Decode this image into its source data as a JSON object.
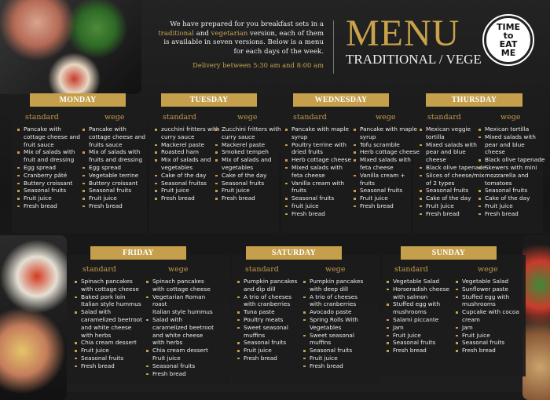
{
  "intro": {
    "line1": "We have prepared for you breakfast sets in a",
    "trad": "traditional",
    "and": " and ",
    "veg": "vegetarian",
    "line2rest": " version, each of them is available in seven versions. Below is a menu for each days of the week.",
    "delivery": "Delivery between 5:30 am and 8:00 am"
  },
  "header": {
    "title": "MENU",
    "subtitle": "TRADITIONAL / VEGE",
    "logo_text": "TIME TO EAT ME"
  },
  "colors": {
    "gold": "#c59f4c",
    "background": "#1a1a1a",
    "panel": "#1c1c1c"
  },
  "labels": {
    "standard": "standard",
    "wege": "wege"
  },
  "days": [
    {
      "name": "MONDAY",
      "standard": [
        {
          "t": "Pancake with cottage cheese and fruit sauce"
        },
        {
          "t": "Mix of salads with fruit and dressing"
        },
        {
          "t": "Egg spread"
        },
        {
          "t": "Cranberry pâté"
        },
        {
          "t": "Buttery croissant"
        },
        {
          "t": "Seasonal fruits"
        },
        {
          "t": "Fruit juice"
        },
        {
          "t": "Fresh bread"
        }
      ],
      "wege": [
        {
          "t": "Pancake with cottage cheese and fruits sauce"
        },
        {
          "t": "Mix of salads with fruits and dressing"
        },
        {
          "t": "Egg spread"
        },
        {
          "t": "Vegetable terrine"
        },
        {
          "t": "Buttery croissant"
        },
        {
          "t": "Seasonal fruits"
        },
        {
          "t": "Fruit juice"
        },
        {
          "t": "Fresh bread"
        }
      ]
    },
    {
      "name": "TUESDAY",
      "standard": [
        {
          "t": "zucchini fritters with curry sauce"
        },
        {
          "t": "Mackerel paste"
        },
        {
          "t": "Roasted ham"
        },
        {
          "t": "Mix of salads and vegetables"
        },
        {
          "t": "Cake of the day"
        },
        {
          "t": "Seasonal fruitss"
        },
        {
          "t": "Fruit juice"
        },
        {
          "t": "Fresh bread"
        }
      ],
      "wege": [
        {
          "t": "Zucchini fritters with curry sauce"
        },
        {
          "t": "Mackerel paste"
        },
        {
          "t": "Smoked tempeh"
        },
        {
          "t": "Mix of salads and vegetables"
        },
        {
          "t": "Cake of the day"
        },
        {
          "t": "Seasonal fruits"
        },
        {
          "t": "Fruit juice"
        },
        {
          "t": "Fresh bread"
        }
      ]
    },
    {
      "name": "WEDNESDAY",
      "standard": [
        {
          "t": "Pancake with maple syrup"
        },
        {
          "t": "Poultry terrine with dried fruits"
        },
        {
          "t": "Herb cottage cheese"
        },
        {
          "t": "Mixed salads with feta cheese"
        },
        {
          "t": "Vanilla cream with fruits"
        },
        {
          "t": "Seasonal fruits"
        },
        {
          "t": "fruit juice"
        },
        {
          "t": "Fresh bread"
        }
      ],
      "wege": [
        {
          "t": "Pancake with maple syrup"
        },
        {
          "t": "Tofu scramble"
        },
        {
          "t": "Herb cottage cheese"
        },
        {
          "t": "Mixed salads with feta cheese"
        },
        {
          "t": "Vanilla cream + fruits"
        },
        {
          "t": "Seasonal fruits"
        },
        {
          "t": "Fruit juice"
        },
        {
          "t": "Fresh bread"
        }
      ]
    },
    {
      "name": "THURSDAY",
      "standard": [
        {
          "t": "Mexican veggie tortilla"
        },
        {
          "t": "Mixed salads with pear and blue cheese"
        },
        {
          "t": "Black olive tapenade"
        },
        {
          "t": "Slices of cheese/mix of 2 types"
        },
        {
          "t": "Seasonal fruits"
        },
        {
          "t": "Cake of the day"
        },
        {
          "t": "Fruit juice"
        },
        {
          "t": "Fresh bread"
        }
      ],
      "wege": [
        {
          "t": "Mexican tortilla"
        },
        {
          "t": "Mixed salads with pear and blue cheese"
        },
        {
          "t": "Black olive tapenade"
        },
        {
          "t": "Skewers with mini mozzarella and tomatoes"
        },
        {
          "t": "Seasonal fruits"
        },
        {
          "t": "Cake of the day"
        },
        {
          "t": "Fruit juice"
        },
        {
          "t": "Fresh bread"
        }
      ]
    },
    {
      "name": "FRIDAY",
      "standard": [
        {
          "t": "Spinach pancakes with cottage cheese"
        },
        {
          "t": "Baked pork loin"
        },
        {
          "t": "Italian style hummus",
          "bullet": false
        },
        {
          "t": "Salad with caramelized beetroot and white cheese with herbs"
        },
        {
          "t": "Chia cream dessert"
        },
        {
          "t": "Fruit juice"
        },
        {
          "t": "Seasonal fruits"
        },
        {
          "t": "Fresh bread"
        }
      ],
      "wege": [
        {
          "t": "Spinach pancakes with cottage cheese"
        },
        {
          "t": "Vegetarian Roman roast"
        },
        {
          "t": "Italian style hummus",
          "bullet": false
        },
        {
          "t": "Salad with caramelized beetroot and white cheese with herbs"
        },
        {
          "t": "Chia cream dessert"
        },
        {
          "t": "Fruit juice",
          "bullet": false
        },
        {
          "t": "Seasonal fruits"
        },
        {
          "t": "Fresh bread"
        }
      ]
    },
    {
      "name": "SATURDAY",
      "standard": [
        {
          "t": "Pumpkin pancakes and dip dill"
        },
        {
          "t": "A trio of cheeses with cranberries"
        },
        {
          "t": "Tuna paste"
        },
        {
          "t": "Poultry meats"
        },
        {
          "t": "Sweet seasonal muffins"
        },
        {
          "t": "Seasonal fruits"
        },
        {
          "t": "Fruit juice"
        },
        {
          "t": "Fresh bread"
        }
      ],
      "wege": [
        {
          "t": "Pumpkin pancakes with deep dill"
        },
        {
          "t": "A trio of cheeses with cranberries"
        },
        {
          "t": "Avocado paste"
        },
        {
          "t": "Spring Rolls With Vegetables"
        },
        {
          "t": "Sweet seasonal muffins"
        },
        {
          "t": "Seasonal fruits"
        },
        {
          "t": "Fruit juice"
        },
        {
          "t": "Fresh bread"
        }
      ]
    },
    {
      "name": "SUNDAY",
      "standard": [
        {
          "t": "Vegetable Salad"
        },
        {
          "t": "Horseradish cheese with salmon"
        },
        {
          "t": "Stuffed egg with mushrooms"
        },
        {
          "t": "Salami piccante"
        },
        {
          "t": "Jam"
        },
        {
          "t": "Fruit juice"
        },
        {
          "t": "Seasonal fruits"
        },
        {
          "t": "Fresh bread"
        }
      ],
      "wege": [
        {
          "t": "Vegetable Salad"
        },
        {
          "t": "Sunflower paste"
        },
        {
          "t": "Stuffed egg with mushrooms"
        },
        {
          "t": "Cupcake with cocoa cream"
        },
        {
          "t": "Jam"
        },
        {
          "t": "Fruit juice"
        },
        {
          "t": "Seasonal fruits"
        },
        {
          "t": "Fresh bread"
        }
      ]
    }
  ]
}
